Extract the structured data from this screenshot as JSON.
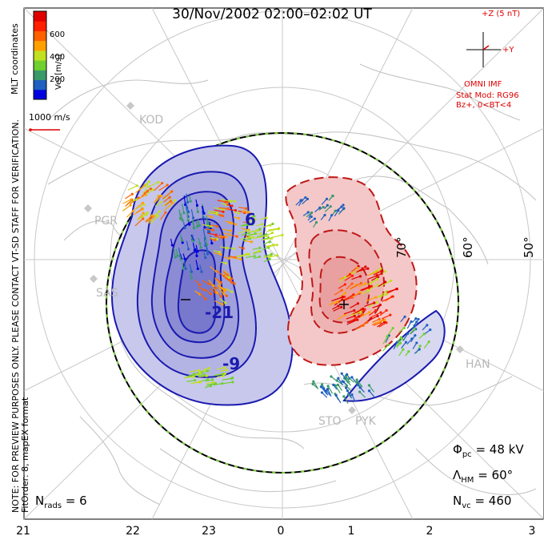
{
  "title": "30/Nov/2002 02:00–02:02 UT",
  "note_line1": "NOTE: FOR PREVIEW PURPOSES ONLY. PLEASE CONTACT VT-SD STAFF FOR VERIFICATION.",
  "note_line2": "FitOrder: 8, mapEX format",
  "coord_label": "MLT coordinates",
  "colorbar": {
    "label": "Vel [m/s]",
    "ticks": [
      "600",
      "400",
      "200"
    ],
    "colors": [
      "#0000e0",
      "#2060c0",
      "#3a9a6a",
      "#70d030",
      "#c0e020",
      "#ffa000",
      "#ff6000",
      "#ff2000",
      "#e00000"
    ]
  },
  "scale_vector": "1000 m/s",
  "imf": {
    "z_label": "+Z (5 nT)",
    "y_label": "+Y",
    "source": "OMNI IMF",
    "model_line1": "Stat Mod: RG96",
    "model_line2": "Bz+, 0<BT<4"
  },
  "stats": {
    "phi_sym": "Φ",
    "phi_sub": "pc",
    "phi_val": "= 48 kV",
    "lam_sym": "Λ",
    "lam_sub": "HM",
    "lam_val": "= 60°",
    "nvc_sym": "N",
    "nvc_sub": "vc",
    "nvc_val": "= 460",
    "nrads_sym": "N",
    "nrads_sub": "rads",
    "nrads_val": "= 6"
  },
  "mlt_ticks": [
    "21",
    "22",
    "23",
    "0",
    "1",
    "2",
    "3"
  ],
  "latitudes": [
    "70°",
    "60°",
    "50°"
  ],
  "stations": [
    "KOD",
    "PGR",
    "SAS",
    "HAN",
    "STO",
    "PYK"
  ],
  "contour_labels": {
    "neg_a": "-21",
    "neg_b": "-9",
    "pos_a": "6",
    "minus": "−",
    "plus": "+"
  },
  "colors": {
    "negative_fill": "#c8c8ec",
    "positive_fill": "#f4c8c8",
    "negative_line": "#1a1ab0",
    "positive_line": "#c01818"
  }
}
